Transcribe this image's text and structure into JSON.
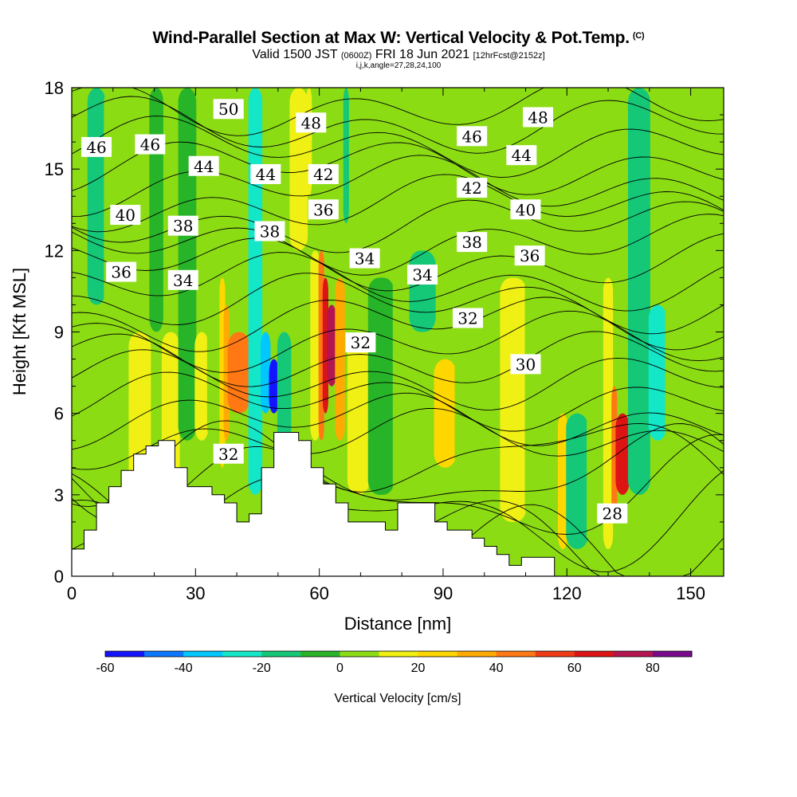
{
  "title": "Wind-Parallel Section at Max W: Vertical Velocity & Pot.Temp.",
  "title_mark": "(C)",
  "subtitle_main": "Valid 1500 JST",
  "subtitle_utc": "(0600Z)",
  "subtitle_date": "FRI 18 Jun 2021",
  "subtitle_fcst": "[12hrFcst@2152z]",
  "subtitle_params": "i,j,k,angle=27,28,24,100",
  "chart_data": {
    "type": "heatmap",
    "xlabel": "Distance [nm]",
    "ylabel": "Height [Kft MSL]",
    "xlim": [
      0,
      158
    ],
    "ylim": [
      0,
      18
    ],
    "xticks": [
      "0",
      "30",
      "60",
      "90",
      "120",
      "150"
    ],
    "yticks": [
      "0",
      "3",
      "6",
      "9",
      "12",
      "15",
      "18"
    ],
    "colorbar": {
      "label": "Vertical Velocity [cm/s]",
      "ticks": [
        "-60",
        "-40",
        "-20",
        "0",
        "20",
        "40",
        "60",
        "80"
      ],
      "levels": [
        -60,
        -50,
        -40,
        -30,
        -20,
        -10,
        0,
        10,
        20,
        30,
        40,
        50,
        60,
        70,
        80,
        90
      ],
      "colors": [
        "#1414ff",
        "#0a78ff",
        "#00c8ff",
        "#14e6c8",
        "#14c878",
        "#28b428",
        "#8cdc14",
        "#f0f014",
        "#ffd700",
        "#ffaa00",
        "#ff7814",
        "#f03c14",
        "#dc1414",
        "#b41450",
        "#780a8c"
      ]
    },
    "background_w": 3,
    "w_cells": [
      {
        "x": 0,
        "y0": 0,
        "y1": 18,
        "w": 3
      },
      {
        "x": 4,
        "y0": 10,
        "y1": 18,
        "w": -12
      },
      {
        "x": 8,
        "y0": 0,
        "y1": 18,
        "w": 7
      },
      {
        "x": 14,
        "y0": 2,
        "y1": 9,
        "w": 13
      },
      {
        "x": 19,
        "y0": 9,
        "y1": 18,
        "w": -6
      },
      {
        "x": 22,
        "y0": 3,
        "y1": 9,
        "w": 15
      },
      {
        "x": 26,
        "y0": 5,
        "y1": 18,
        "w": -7
      },
      {
        "x": 30,
        "y0": 5,
        "y1": 9,
        "w": 14
      },
      {
        "x": 33,
        "y0": 5,
        "y1": 18,
        "w": 2
      },
      {
        "x": 36,
        "y0": 4,
        "y1": 11,
        "w": 22
      },
      {
        "x": 37,
        "y0": 5,
        "y1": 10,
        "w": 35
      },
      {
        "x": 38,
        "y0": 6,
        "y1": 9,
        "w": 48
      },
      {
        "x": 43,
        "y0": 3,
        "y1": 18,
        "w": -22
      },
      {
        "x": 46,
        "y0": 6,
        "y1": 9,
        "w": -36
      },
      {
        "x": 48,
        "y0": 6,
        "y1": 8,
        "w": -55
      },
      {
        "x": 50,
        "y0": 4,
        "y1": 9,
        "w": -18
      },
      {
        "x": 53,
        "y0": 12,
        "y1": 18,
        "w": 15
      },
      {
        "x": 57,
        "y0": 14,
        "y1": 18,
        "w": 12
      },
      {
        "x": 58,
        "y0": 5,
        "y1": 12,
        "w": 18
      },
      {
        "x": 60,
        "y0": 5,
        "y1": 12,
        "w": 42
      },
      {
        "x": 61,
        "y0": 6,
        "y1": 11,
        "w": 62
      },
      {
        "x": 62,
        "y0": 7,
        "y1": 10,
        "w": 72
      },
      {
        "x": 64,
        "y0": 5,
        "y1": 11,
        "w": 32
      },
      {
        "x": 66,
        "y0": 13,
        "y1": 18,
        "w": -12
      },
      {
        "x": 67,
        "y0": 3,
        "y1": 9,
        "w": 12
      },
      {
        "x": 72,
        "y0": 3,
        "y1": 11,
        "w": -4
      },
      {
        "x": 78,
        "y0": 2,
        "y1": 18,
        "w": 8
      },
      {
        "x": 82,
        "y0": 9,
        "y1": 12,
        "w": -14
      },
      {
        "x": 88,
        "y0": 4,
        "y1": 8,
        "w": 28
      },
      {
        "x": 93,
        "y0": 2,
        "y1": 18,
        "w": 5
      },
      {
        "x": 98,
        "y0": 2,
        "y1": 18,
        "w": 1
      },
      {
        "x": 104,
        "y0": 2,
        "y1": 11,
        "w": 12
      },
      {
        "x": 110,
        "y0": 2,
        "y1": 18,
        "w": 4
      },
      {
        "x": 118,
        "y0": 1,
        "y1": 6,
        "w": 28
      },
      {
        "x": 120,
        "y0": 1,
        "y1": 6,
        "w": -18
      },
      {
        "x": 125,
        "y0": 1,
        "y1": 18,
        "w": 2
      },
      {
        "x": 129,
        "y0": 1,
        "y1": 11,
        "w": 18
      },
      {
        "x": 131,
        "y0": 2,
        "y1": 7,
        "w": 45
      },
      {
        "x": 132,
        "y0": 3,
        "y1": 6,
        "w": 62
      },
      {
        "x": 135,
        "y0": 3,
        "y1": 18,
        "w": -15
      },
      {
        "x": 140,
        "y0": 5,
        "y1": 10,
        "w": -22
      },
      {
        "x": 144,
        "y0": 0,
        "y1": 18,
        "w": 6
      },
      {
        "x": 150,
        "y0": 0,
        "y1": 18,
        "w": 2
      }
    ],
    "terrain": [
      [
        0,
        1
      ],
      [
        3,
        1
      ],
      [
        3,
        1.7
      ],
      [
        6,
        1.7
      ],
      [
        6,
        2.7
      ],
      [
        9,
        2.7
      ],
      [
        9,
        3.3
      ],
      [
        12,
        3.3
      ],
      [
        12,
        3.9
      ],
      [
        15,
        3.9
      ],
      [
        15,
        4.5
      ],
      [
        18,
        4.5
      ],
      [
        18,
        4.8
      ],
      [
        21,
        4.8
      ],
      [
        21,
        5
      ],
      [
        25,
        5
      ],
      [
        25,
        4
      ],
      [
        28,
        4
      ],
      [
        28,
        3.3
      ],
      [
        34,
        3.3
      ],
      [
        34,
        3
      ],
      [
        37,
        3
      ],
      [
        37,
        2.7
      ],
      [
        40,
        2.7
      ],
      [
        40,
        2
      ],
      [
        43,
        2
      ],
      [
        43,
        2.3
      ],
      [
        46,
        2.3
      ],
      [
        46,
        4
      ],
      [
        49,
        4
      ],
      [
        49,
        5.3
      ],
      [
        52,
        5.3
      ],
      [
        52,
        5.3
      ],
      [
        55,
        5.3
      ],
      [
        55,
        5
      ],
      [
        58,
        5
      ],
      [
        58,
        4
      ],
      [
        61,
        4
      ],
      [
        61,
        3.4
      ],
      [
        64,
        3.4
      ],
      [
        64,
        2.7
      ],
      [
        67,
        2.7
      ],
      [
        67,
        2
      ],
      [
        76,
        2
      ],
      [
        76,
        1.7
      ],
      [
        79,
        1.7
      ],
      [
        79,
        2.7
      ],
      [
        88,
        2.7
      ],
      [
        88,
        2
      ],
      [
        91,
        2
      ],
      [
        91,
        1.7
      ],
      [
        97,
        1.7
      ],
      [
        97,
        1.4
      ],
      [
        100,
        1.4
      ],
      [
        100,
        1.1
      ],
      [
        103,
        1.1
      ],
      [
        103,
        0.8
      ],
      [
        106,
        0.8
      ],
      [
        106,
        0.4
      ],
      [
        109,
        0.4
      ],
      [
        109,
        0.7
      ],
      [
        117,
        0.7
      ],
      [
        117,
        0
      ],
      [
        158,
        0
      ]
    ],
    "theta_contours": [
      28,
      29,
      30,
      31,
      32,
      33,
      34,
      35,
      36,
      37,
      38,
      39,
      40,
      41,
      42,
      43,
      44,
      45,
      46,
      47,
      48,
      49,
      50,
      51
    ],
    "contour_labels": [
      {
        "text": "50",
        "x": 38,
        "y": 17.2
      },
      {
        "text": "48",
        "x": 58,
        "y": 16.7
      },
      {
        "text": "48",
        "x": 113,
        "y": 16.9
      },
      {
        "text": "46",
        "x": 6,
        "y": 15.8
      },
      {
        "text": "46",
        "x": 19,
        "y": 15.9
      },
      {
        "text": "46",
        "x": 97,
        "y": 16.2
      },
      {
        "text": "44",
        "x": 32,
        "y": 15.1
      },
      {
        "text": "44",
        "x": 47,
        "y": 14.8
      },
      {
        "text": "44",
        "x": 109,
        "y": 15.5
      },
      {
        "text": "42",
        "x": 61,
        "y": 14.8
      },
      {
        "text": "42",
        "x": 97,
        "y": 14.3
      },
      {
        "text": "40",
        "x": 13,
        "y": 13.3
      },
      {
        "text": "40",
        "x": 110,
        "y": 13.5
      },
      {
        "text": "38",
        "x": 27,
        "y": 12.9
      },
      {
        "text": "38",
        "x": 48,
        "y": 12.7
      },
      {
        "text": "38",
        "x": 97,
        "y": 12.3
      },
      {
        "text": "36",
        "x": 12,
        "y": 11.2
      },
      {
        "text": "36",
        "x": 61,
        "y": 13.5
      },
      {
        "text": "36",
        "x": 111,
        "y": 11.8
      },
      {
        "text": "34",
        "x": 27,
        "y": 10.9
      },
      {
        "text": "34",
        "x": 71,
        "y": 11.7
      },
      {
        "text": "34",
        "x": 85,
        "y": 11.1
      },
      {
        "text": "32",
        "x": 96,
        "y": 9.5
      },
      {
        "text": "32",
        "x": 70,
        "y": 8.6
      },
      {
        "text": "32",
        "x": 38,
        "y": 4.5
      },
      {
        "text": "30",
        "x": 110,
        "y": 7.8
      },
      {
        "text": "28",
        "x": 131,
        "y": 2.3
      }
    ]
  }
}
